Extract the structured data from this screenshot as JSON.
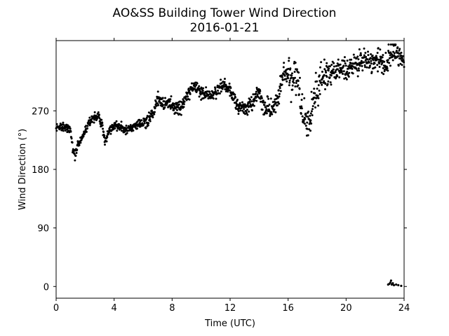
{
  "chart_data": {
    "type": "scatter",
    "title": "AO&SS Building Tower Wind Direction",
    "subtitle": "2016-01-21",
    "xlabel": "Time (UTC)",
    "ylabel": "Wind Direction (°)",
    "xlim": [
      0,
      24
    ],
    "ylim": [
      -18,
      378
    ],
    "xticks": [
      0,
      4,
      8,
      12,
      16,
      20,
      24
    ],
    "yticks": [
      0,
      90,
      180,
      270
    ],
    "grid": false,
    "marker_color": "#000000",
    "trend": [
      [
        0.0,
        247
      ],
      [
        0.4,
        246
      ],
      [
        0.8,
        244
      ],
      [
        1.0,
        238
      ],
      [
        1.15,
        212
      ],
      [
        1.3,
        202
      ],
      [
        1.5,
        218
      ],
      [
        1.8,
        228
      ],
      [
        2.0,
        240
      ],
      [
        2.2,
        248
      ],
      [
        2.5,
        258
      ],
      [
        2.9,
        262
      ],
      [
        3.2,
        246
      ],
      [
        3.35,
        222
      ],
      [
        3.6,
        238
      ],
      [
        4.0,
        248
      ],
      [
        4.4,
        245
      ],
      [
        4.8,
        240
      ],
      [
        5.3,
        244
      ],
      [
        5.8,
        250
      ],
      [
        6.3,
        254
      ],
      [
        6.7,
        270
      ],
      [
        7.0,
        290
      ],
      [
        7.3,
        282
      ],
      [
        7.8,
        283
      ],
      [
        8.3,
        272
      ],
      [
        8.7,
        275
      ],
      [
        9.1,
        298
      ],
      [
        9.6,
        310
      ],
      [
        10.0,
        297
      ],
      [
        10.6,
        293
      ],
      [
        11.1,
        300
      ],
      [
        11.6,
        312
      ],
      [
        12.0,
        302
      ],
      [
        12.3,
        287
      ],
      [
        12.7,
        276
      ],
      [
        13.1,
        273
      ],
      [
        13.6,
        284
      ],
      [
        14.0,
        300
      ],
      [
        14.3,
        279
      ],
      [
        14.8,
        271
      ],
      [
        15.2,
        285
      ],
      [
        15.6,
        320
      ],
      [
        16.0,
        327
      ],
      [
        16.3,
        318
      ],
      [
        16.6,
        325
      ],
      [
        16.9,
        270
      ],
      [
        17.2,
        250
      ],
      [
        17.5,
        258
      ],
      [
        17.9,
        300
      ],
      [
        18.3,
        316
      ],
      [
        18.7,
        328
      ],
      [
        19.2,
        332
      ],
      [
        19.7,
        335
      ],
      [
        20.2,
        338
      ],
      [
        20.7,
        344
      ],
      [
        21.2,
        349
      ],
      [
        21.7,
        346
      ],
      [
        22.2,
        348
      ],
      [
        22.6,
        340
      ],
      [
        23.0,
        355
      ],
      [
        23.4,
        362
      ],
      [
        24.0,
        348
      ]
    ],
    "near_zero_cluster": [
      [
        22.9,
        3
      ],
      [
        22.98,
        4
      ],
      [
        23.05,
        6
      ],
      [
        23.1,
        9
      ],
      [
        23.15,
        3
      ],
      [
        23.22,
        5
      ],
      [
        23.3,
        2
      ],
      [
        23.45,
        3
      ],
      [
        23.6,
        2
      ],
      [
        23.8,
        1
      ]
    ]
  }
}
